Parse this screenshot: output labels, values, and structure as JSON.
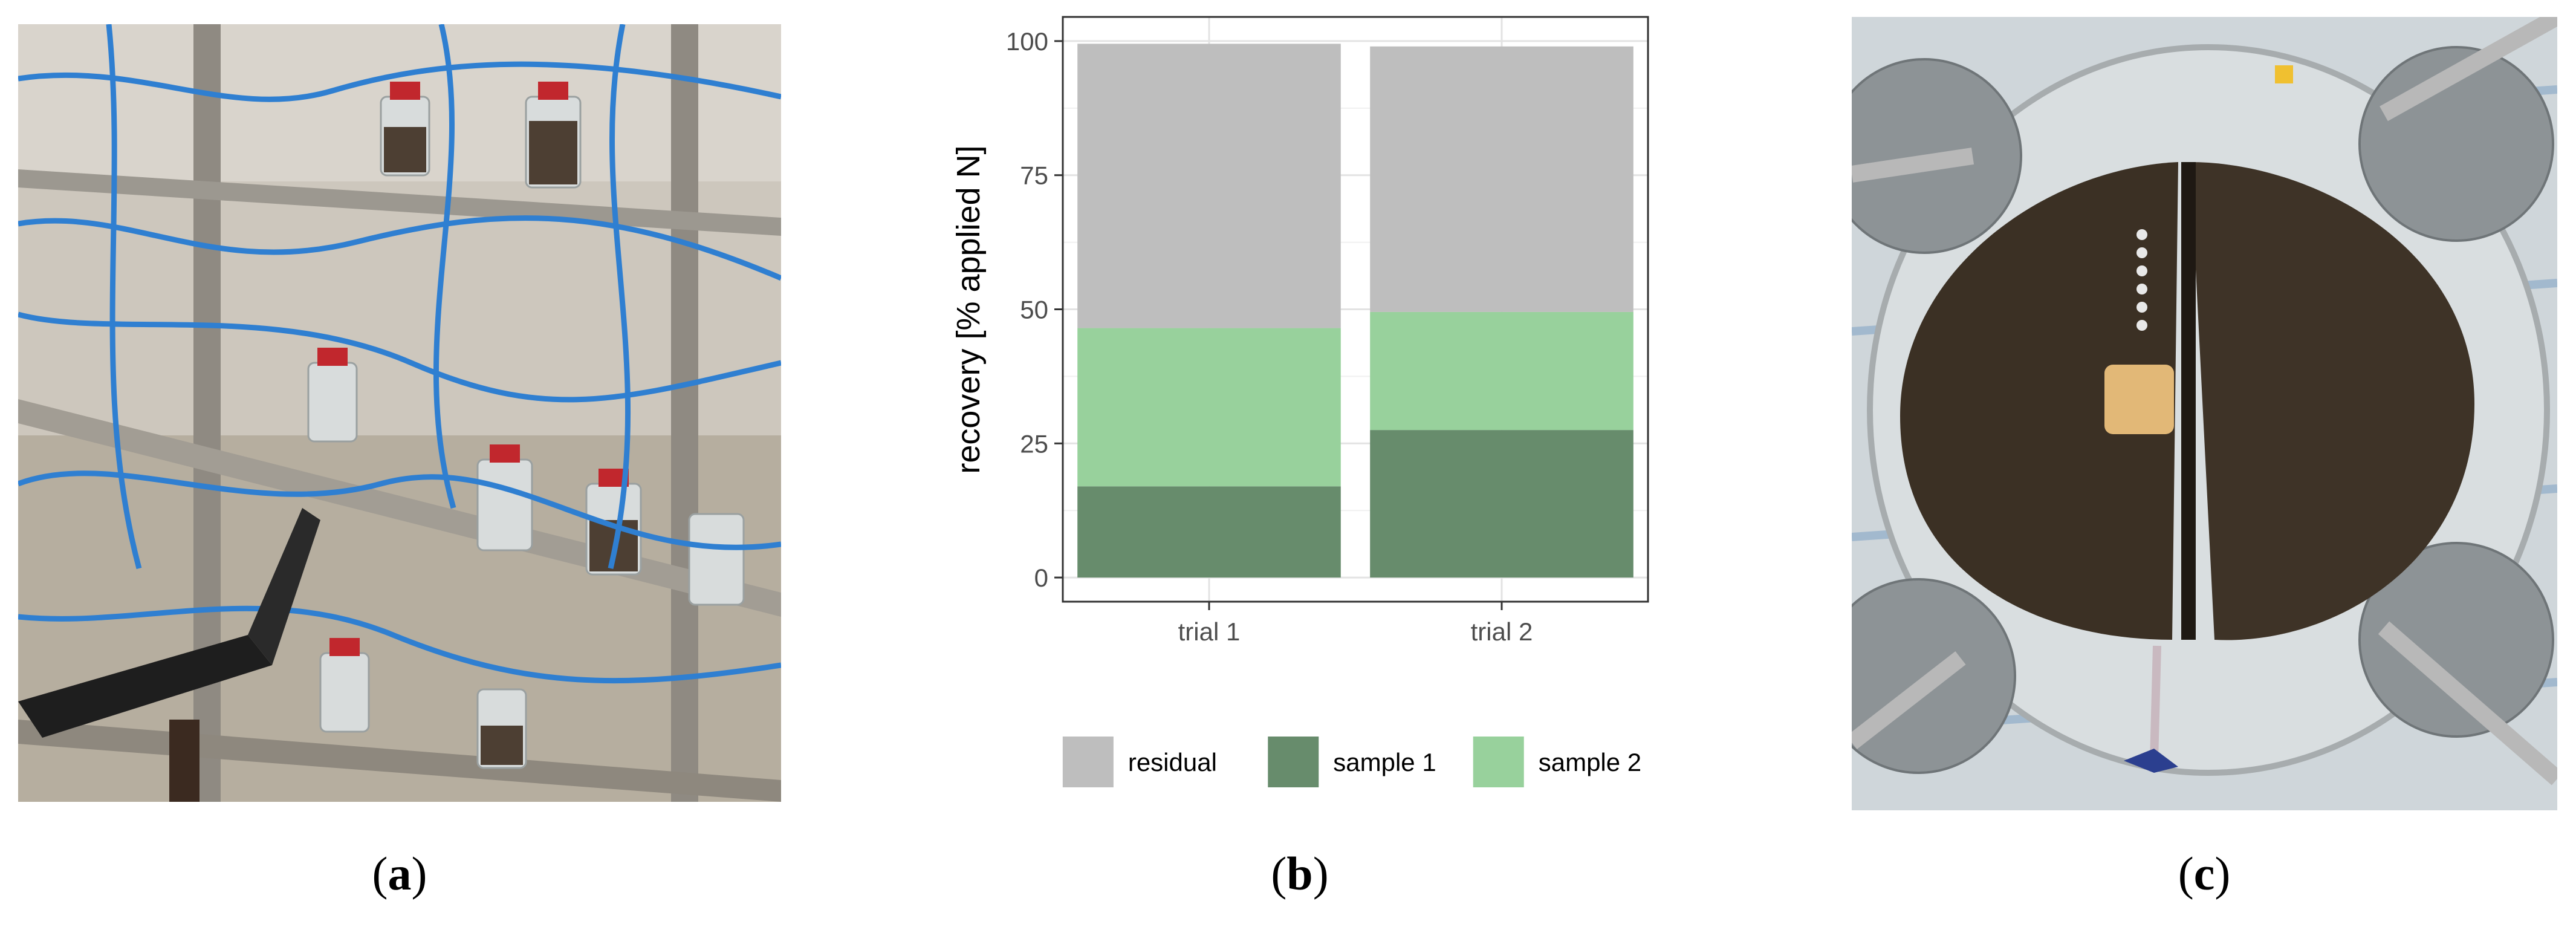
{
  "panels": {
    "a": {
      "label": "a"
    },
    "b": {
      "label": "b"
    },
    "c": {
      "label": "c"
    }
  },
  "chart_data": {
    "type": "bar",
    "stacked": true,
    "categories": [
      "trial 1",
      "trial 2"
    ],
    "series": [
      {
        "name": "sample 1",
        "values": [
          17,
          27.5
        ],
        "color": "#678c6c"
      },
      {
        "name": "sample 2",
        "values": [
          29.5,
          22
        ],
        "color": "#98d19c"
      },
      {
        "name": "residual",
        "values": [
          53,
          49.5
        ],
        "color": "#bebebe"
      }
    ],
    "legend_order": [
      "residual",
      "sample 1",
      "sample 2"
    ],
    "title": "",
    "xlabel": "",
    "ylabel": "recovery [% applied N]",
    "ylim": [
      0,
      100
    ],
    "yticks": [
      0,
      25,
      50,
      75,
      100
    ],
    "grid": true,
    "legend_position": "bottom"
  }
}
